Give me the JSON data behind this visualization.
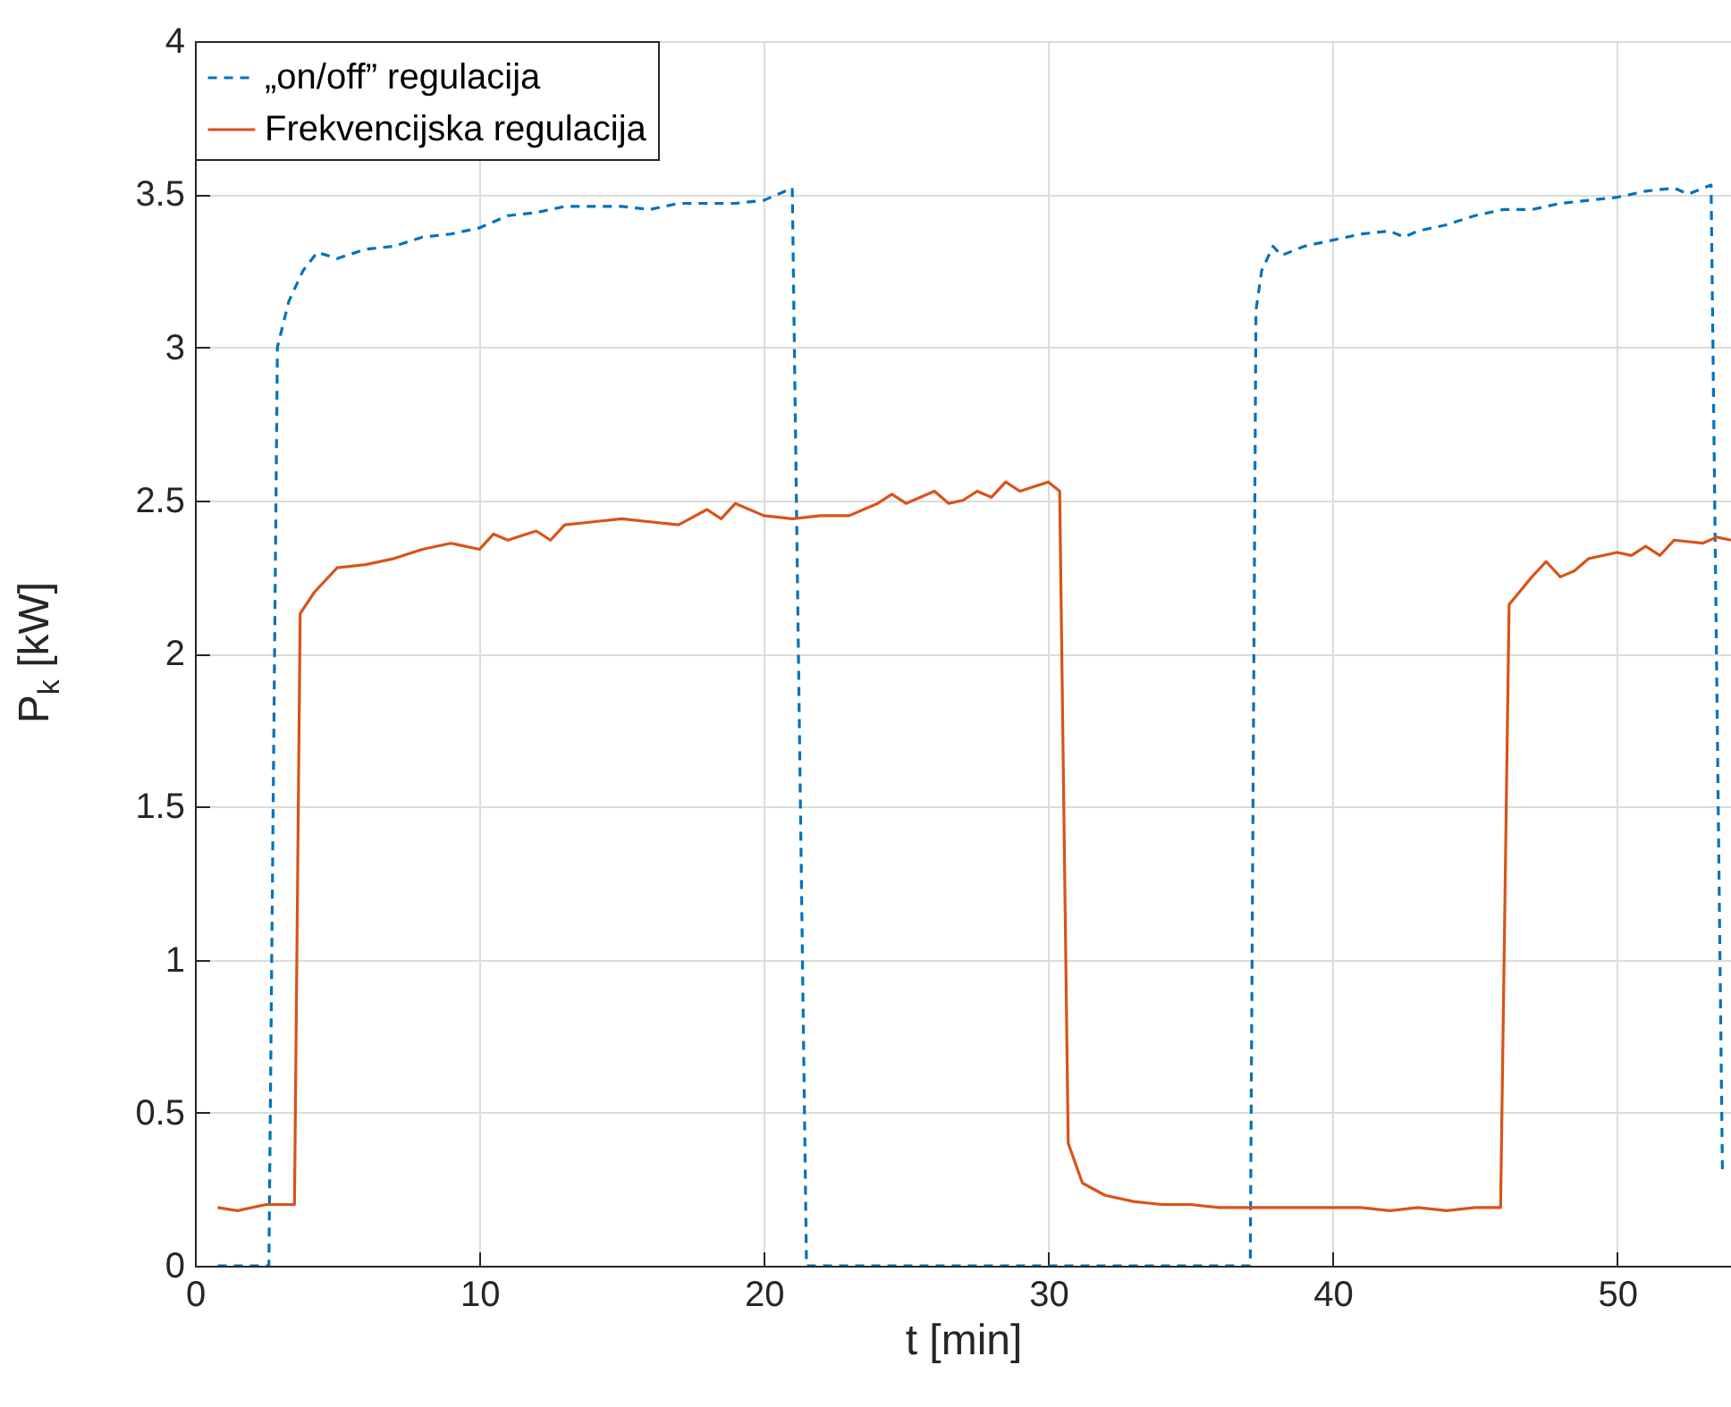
{
  "chart_data": {
    "type": "line",
    "xlabel": "t [min]",
    "ylabel": "P$_{k}$ [kW]",
    "xlim": [
      0,
      54
    ],
    "ylim": [
      0,
      4
    ],
    "xticks": [
      0,
      10,
      20,
      30,
      40,
      50
    ],
    "yticks": [
      0,
      0.5,
      1,
      1.5,
      2,
      2.5,
      3,
      3.5,
      4
    ],
    "grid": true,
    "legend": "top left",
    "series": [
      {
        "name": "„on/off” regulacija",
        "color": "#0072bd",
        "line_style": "dashed",
        "x": [
          0.8,
          2.6,
          2.9,
          3.3,
          3.8,
          4.3,
          5,
          6,
          7,
          8,
          9,
          10,
          11,
          12,
          13,
          14,
          15,
          16,
          17,
          18,
          19,
          20,
          21,
          21.5,
          37.1,
          37.3,
          37.5,
          37.9,
          38.2,
          39,
          40,
          41,
          42,
          42.5,
          43,
          44,
          45,
          46,
          47,
          48,
          49,
          50,
          51,
          52,
          52.5,
          53.3,
          53.7
        ],
        "values": [
          0,
          0,
          3.0,
          3.15,
          3.25,
          3.31,
          3.29,
          3.32,
          3.33,
          3.36,
          3.37,
          3.39,
          3.43,
          3.44,
          3.46,
          3.46,
          3.46,
          3.45,
          3.47,
          3.47,
          3.47,
          3.48,
          3.52,
          0,
          0,
          3.12,
          3.25,
          3.33,
          3.3,
          3.33,
          3.35,
          3.37,
          3.38,
          3.36,
          3.38,
          3.4,
          3.43,
          3.45,
          3.45,
          3.47,
          3.48,
          3.49,
          3.51,
          3.52,
          3.5,
          3.53,
          0.3
        ]
      },
      {
        "name": "Frekvencijska regulacija",
        "color": "#d95319",
        "line_style": "solid",
        "x": [
          0.8,
          1.5,
          2.5,
          3.5,
          3.7,
          4.2,
          5,
          6,
          7,
          8,
          9,
          10,
          10.5,
          11,
          12,
          12.5,
          13,
          14,
          15,
          16,
          17,
          18,
          18.5,
          19,
          20,
          21,
          22,
          23,
          24,
          24.5,
          25,
          26,
          26.5,
          27,
          27.5,
          28,
          28.5,
          29,
          30,
          30.4,
          30.7,
          31.2,
          32,
          33,
          34,
          35,
          36,
          37,
          38,
          40,
          41,
          42,
          43,
          44,
          45,
          45.9,
          46.2,
          47,
          47.5,
          48,
          48.5,
          49,
          50,
          50.5,
          51,
          51.5,
          52,
          53,
          53.5,
          54
        ],
        "values": [
          0.19,
          0.18,
          0.2,
          0.2,
          2.13,
          2.2,
          2.28,
          2.29,
          2.31,
          2.34,
          2.36,
          2.34,
          2.39,
          2.37,
          2.4,
          2.37,
          2.42,
          2.43,
          2.44,
          2.43,
          2.42,
          2.47,
          2.44,
          2.49,
          2.45,
          2.44,
          2.45,
          2.45,
          2.49,
          2.52,
          2.49,
          2.53,
          2.49,
          2.5,
          2.53,
          2.51,
          2.56,
          2.53,
          2.56,
          2.53,
          0.4,
          0.27,
          0.23,
          0.21,
          0.2,
          0.2,
          0.19,
          0.19,
          0.19,
          0.19,
          0.19,
          0.18,
          0.19,
          0.18,
          0.19,
          0.19,
          2.16,
          2.25,
          2.3,
          2.25,
          2.27,
          2.31,
          2.33,
          2.32,
          2.35,
          2.32,
          2.37,
          2.36,
          2.38,
          2.37
        ]
      }
    ]
  }
}
